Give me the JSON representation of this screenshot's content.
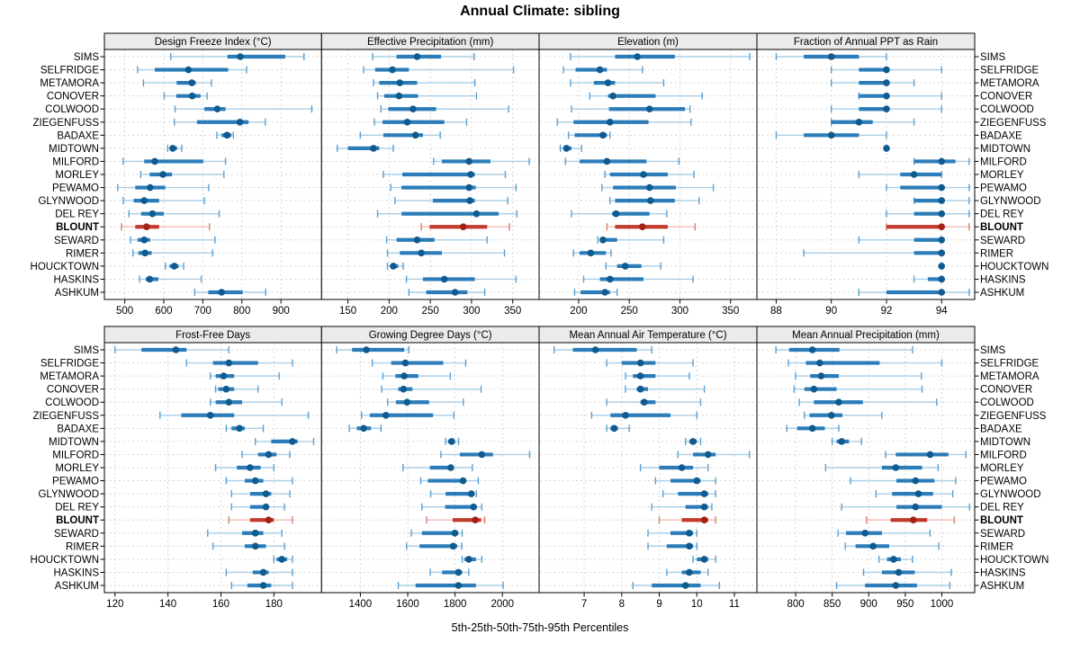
{
  "chart_data": {
    "type": "percentile-interval-dotplot-trellis",
    "title": "Annual Climate: sibling",
    "caption": "5th-25th-50th-75th-95th Percentiles",
    "percentiles_shown": [
      5,
      25,
      50,
      75,
      95
    ],
    "highlight_site": "BLOUNT",
    "legend_position": "none",
    "grid": "dashed",
    "sites": [
      "SIMS",
      "SELFRIDGE",
      "METAMORA",
      "CONOVER",
      "COLWOOD",
      "ZIEGENFUSS",
      "BADAXE",
      "MIDTOWN",
      "MILFORD",
      "MORLEY",
      "PEWAMO",
      "GLYNWOOD",
      "DEL REY",
      "BLOUNT",
      "SEWARD",
      "RIMER",
      "HOUCKTOWN",
      "HASKINS",
      "ASHKUM"
    ],
    "colors": {
      "normal": {
        "line": "#a9cde6",
        "cap": "#5b9fd0",
        "bar": "#2b7cb8",
        "dot": "#0f5a8f"
      },
      "highlight": {
        "line": "#f0bcb6",
        "cap": "#d97b6f",
        "bar": "#c23a2c",
        "dot": "#a32014"
      },
      "panel_bg": "#ffffff",
      "strip_bg": "#ebebeb",
      "border": "#000000",
      "gridline": "#d6d6d6"
    },
    "panels": [
      {
        "label": "Design Freeze Index (°C)",
        "row": 0,
        "col": 0,
        "xlim": [
          448,
          1004
        ],
        "ticks": [
          500,
          600,
          700,
          800,
          900
        ],
        "series": [
          [
            618,
            763,
            796,
            911,
            959
          ],
          [
            533,
            577,
            663,
            765,
            812
          ],
          [
            548,
            633,
            672,
            682,
            722
          ],
          [
            601,
            632,
            673,
            694,
            711
          ],
          [
            629,
            704,
            737,
            758,
            979
          ],
          [
            627,
            685,
            795,
            817,
            860
          ],
          [
            736,
            748,
            762,
            773,
            778
          ],
          [
            610,
            615,
            623,
            634,
            646
          ],
          [
            496,
            550,
            577,
            701,
            758
          ],
          [
            541,
            564,
            598,
            621,
            754
          ],
          [
            482,
            527,
            565,
            604,
            715
          ],
          [
            496,
            523,
            550,
            588,
            704
          ],
          [
            511,
            542,
            571,
            600,
            742
          ],
          [
            492,
            527,
            556,
            588,
            717
          ],
          [
            515,
            533,
            550,
            565,
            731
          ],
          [
            521,
            535,
            552,
            569,
            725
          ],
          [
            604,
            615,
            627,
            638,
            651
          ],
          [
            538,
            554,
            564,
            586,
            696
          ],
          [
            679,
            714,
            748,
            802,
            861
          ]
        ]
      },
      {
        "label": "Effective Precipitation (mm)",
        "row": 0,
        "col": 1,
        "xlim": [
          118,
          382
        ],
        "ticks": [
          150,
          200,
          250,
          300,
          350
        ],
        "series": [
          [
            180,
            209,
            234,
            263,
            303
          ],
          [
            169,
            183,
            204,
            224,
            351
          ],
          [
            181,
            188,
            213,
            234,
            304
          ],
          [
            186,
            194,
            212,
            235,
            306
          ],
          [
            190,
            199,
            229,
            257,
            345
          ],
          [
            182,
            192,
            222,
            267,
            294
          ],
          [
            165,
            193,
            232,
            241,
            262
          ],
          [
            137,
            150,
            181,
            188,
            205
          ],
          [
            254,
            264,
            297,
            323,
            370
          ],
          [
            193,
            216,
            299,
            304,
            341
          ],
          [
            202,
            215,
            297,
            305,
            354
          ],
          [
            207,
            253,
            298,
            304,
            344
          ],
          [
            186,
            215,
            306,
            333,
            355
          ],
          [
            239,
            249,
            290,
            319,
            346
          ],
          [
            197,
            209,
            234,
            255,
            319
          ],
          [
            198,
            213,
            239,
            264,
            340
          ],
          [
            198,
            202,
            205,
            211,
            217
          ],
          [
            221,
            241,
            267,
            304,
            354
          ],
          [
            224,
            245,
            280,
            295,
            316
          ]
        ]
      },
      {
        "label": "Elevation (m)",
        "row": 0,
        "col": 2,
        "xlim": [
          161,
          376
        ],
        "ticks": [
          200,
          250,
          300,
          350
        ],
        "series": [
          [
            192,
            236,
            258,
            295,
            369
          ],
          [
            185,
            197,
            221,
            228,
            263
          ],
          [
            192,
            215,
            229,
            236,
            284
          ],
          [
            211,
            229,
            234,
            276,
            322
          ],
          [
            193,
            230,
            270,
            305,
            310
          ],
          [
            179,
            195,
            231,
            269,
            311
          ],
          [
            190,
            196,
            224,
            228,
            231
          ],
          [
            182,
            185,
            188,
            193,
            203
          ],
          [
            187,
            201,
            228,
            267,
            299
          ],
          [
            226,
            231,
            264,
            288,
            314
          ],
          [
            223,
            234,
            270,
            296,
            333
          ],
          [
            231,
            236,
            271,
            295,
            319
          ],
          [
            193,
            233,
            237,
            270,
            287
          ],
          [
            228,
            236,
            263,
            288,
            315
          ],
          [
            219,
            222,
            224,
            238,
            284
          ],
          [
            195,
            201,
            212,
            227,
            232
          ],
          [
            227,
            238,
            246,
            262,
            281
          ],
          [
            205,
            221,
            231,
            264,
            313
          ],
          [
            196,
            202,
            226,
            231,
            238
          ]
        ]
      },
      {
        "label": "Fraction of Annual PPT as Rain",
        "row": 0,
        "col": 3,
        "xlim": [
          87.3,
          95.2
        ],
        "ticks": [
          88,
          90,
          92,
          94
        ],
        "series": [
          [
            88,
            89,
            90,
            91,
            92
          ],
          [
            90,
            91,
            92,
            92,
            94
          ],
          [
            90,
            91,
            92,
            92,
            93
          ],
          [
            91,
            91,
            92,
            92,
            94
          ],
          [
            90,
            91,
            92,
            92,
            94
          ],
          [
            90,
            90,
            91,
            91.5,
            93
          ],
          [
            88,
            89,
            90,
            91,
            92
          ],
          [
            92,
            92,
            92,
            92,
            92
          ],
          [
            93,
            93,
            94,
            94.5,
            95
          ],
          [
            91,
            92.5,
            93,
            94,
            94
          ],
          [
            92,
            92.5,
            94,
            94,
            95
          ],
          [
            93,
            93,
            94,
            94,
            95
          ],
          [
            92,
            93,
            94,
            94,
            95
          ],
          [
            92,
            92,
            94,
            94,
            95
          ],
          [
            91,
            93,
            94,
            94,
            94
          ],
          [
            89,
            93,
            94,
            94,
            94
          ],
          [
            94,
            94,
            94,
            94,
            94
          ],
          [
            93,
            93.5,
            94,
            94,
            94
          ],
          [
            91,
            92,
            94,
            94,
            95
          ]
        ]
      },
      {
        "label": "Frost-Free Days",
        "row": 1,
        "col": 0,
        "xlim": [
          116,
          198
        ],
        "ticks": [
          120,
          140,
          160,
          180
        ],
        "series": [
          [
            120,
            130,
            143,
            147,
            163
          ],
          [
            147,
            157,
            163,
            174,
            187
          ],
          [
            156,
            158,
            161,
            165,
            182
          ],
          [
            158,
            159,
            162,
            165,
            174
          ],
          [
            156,
            158,
            163,
            168,
            183
          ],
          [
            137,
            145,
            156,
            165,
            193
          ],
          [
            162,
            164,
            167,
            169,
            176
          ],
          [
            173,
            179,
            187,
            189,
            195
          ],
          [
            168,
            174,
            178,
            181,
            186
          ],
          [
            158,
            166,
            171,
            175,
            180
          ],
          [
            162,
            169,
            173,
            176,
            187
          ],
          [
            164,
            171,
            177,
            179,
            186
          ],
          [
            164,
            171,
            177,
            178,
            184
          ],
          [
            163,
            171,
            178,
            180,
            187
          ],
          [
            155,
            168,
            173,
            176,
            183
          ],
          [
            157,
            169,
            173,
            177,
            184
          ],
          [
            180,
            181,
            183,
            185,
            187
          ],
          [
            162,
            172,
            176,
            178,
            187
          ],
          [
            164,
            170,
            176,
            179,
            187
          ]
        ]
      },
      {
        "label": "Growing Degree Days (°C)",
        "row": 1,
        "col": 1,
        "xlim": [
          1236,
          2155
        ],
        "ticks": [
          1400,
          1600,
          1800,
          2000
        ],
        "series": [
          [
            1300,
            1365,
            1425,
            1585,
            1605
          ],
          [
            1450,
            1530,
            1590,
            1750,
            1845
          ],
          [
            1495,
            1548,
            1585,
            1645,
            1780
          ],
          [
            1490,
            1560,
            1582,
            1620,
            1910
          ],
          [
            1515,
            1550,
            1597,
            1690,
            1835
          ],
          [
            1405,
            1440,
            1508,
            1707,
            1795
          ],
          [
            1353,
            1385,
            1414,
            1445,
            1487
          ],
          [
            1760,
            1770,
            1786,
            1796,
            1815
          ],
          [
            1740,
            1820,
            1913,
            1960,
            2115
          ],
          [
            1580,
            1694,
            1782,
            1792,
            1873
          ],
          [
            1655,
            1685,
            1834,
            1840,
            1898
          ],
          [
            1697,
            1760,
            1869,
            1878,
            1890
          ],
          [
            1660,
            1758,
            1878,
            1892,
            1913
          ],
          [
            1680,
            1790,
            1885,
            1910,
            1925
          ],
          [
            1615,
            1660,
            1799,
            1814,
            1830
          ],
          [
            1595,
            1650,
            1792,
            1809,
            1828
          ],
          [
            1830,
            1840,
            1858,
            1888,
            1913
          ],
          [
            1695,
            1745,
            1814,
            1830,
            1858
          ],
          [
            1560,
            1633,
            1814,
            1888,
            2003
          ]
        ]
      },
      {
        "label": "Mean Annual Air Temperature (°C)",
        "row": 1,
        "col": 2,
        "xlim": [
          5.8,
          11.6
        ],
        "ticks": [
          7,
          8,
          9,
          10,
          11
        ],
        "series": [
          [
            6.2,
            6.7,
            7.3,
            8.4,
            8.8
          ],
          [
            7.6,
            8.0,
            8.5,
            8.9,
            9.9
          ],
          [
            8.1,
            8.3,
            8.5,
            8.9,
            9.8
          ],
          [
            8.1,
            8.4,
            8.5,
            8.7,
            10.2
          ],
          [
            7.6,
            8.5,
            8.6,
            8.9,
            10.1
          ],
          [
            7.2,
            7.7,
            8.1,
            9.3,
            10.0
          ],
          [
            7.6,
            7.7,
            7.8,
            7.9,
            8.2
          ],
          [
            9.7,
            9.8,
            9.9,
            10.0,
            10.1
          ],
          [
            9.5,
            9.9,
            10.3,
            10.5,
            11.4
          ],
          [
            8.5,
            9.0,
            9.6,
            9.9,
            10.3
          ],
          [
            8.9,
            9.3,
            10.0,
            10.1,
            10.5
          ],
          [
            9.1,
            9.5,
            10.2,
            10.3,
            10.5
          ],
          [
            8.8,
            9.7,
            10.2,
            10.3,
            10.4
          ],
          [
            9.0,
            9.6,
            10.2,
            10.3,
            10.5
          ],
          [
            8.7,
            9.3,
            9.8,
            9.9,
            10.0
          ],
          [
            8.7,
            9.2,
            9.8,
            9.9,
            10.0
          ],
          [
            9.9,
            10.0,
            10.2,
            10.3,
            10.5
          ],
          [
            9.2,
            9.6,
            9.8,
            10.1,
            10.3
          ],
          [
            8.3,
            8.8,
            9.7,
            10.1,
            10.6
          ]
        ]
      },
      {
        "label": "Mean Annual Precipitation (mm)",
        "row": 1,
        "col": 3,
        "xlim": [
          747,
          1045
        ],
        "ticks": [
          800,
          850,
          900,
          950,
          1000
        ],
        "series": [
          [
            773,
            791,
            823,
            860,
            960
          ],
          [
            790,
            814,
            833,
            915,
            1000
          ],
          [
            800,
            820,
            835,
            859,
            972
          ],
          [
            798,
            812,
            825,
            856,
            973
          ],
          [
            805,
            825,
            859,
            892,
            993
          ],
          [
            812,
            819,
            849,
            864,
            918
          ],
          [
            788,
            802,
            823,
            840,
            859
          ],
          [
            850,
            856,
            863,
            873,
            890
          ],
          [
            923,
            937,
            984,
            1009,
            1033
          ],
          [
            841,
            918,
            937,
            973,
            995
          ],
          [
            875,
            938,
            964,
            990,
            1019
          ],
          [
            910,
            932,
            968,
            988,
            1015
          ],
          [
            863,
            938,
            964,
            1000,
            1038
          ],
          [
            897,
            930,
            961,
            980,
            1017
          ],
          [
            858,
            869,
            895,
            918,
            984
          ],
          [
            868,
            882,
            906,
            928,
            996
          ],
          [
            914,
            925,
            934,
            944,
            960
          ],
          [
            893,
            918,
            941,
            963,
            1013
          ],
          [
            856,
            895,
            937,
            966,
            1011
          ]
        ]
      }
    ]
  }
}
